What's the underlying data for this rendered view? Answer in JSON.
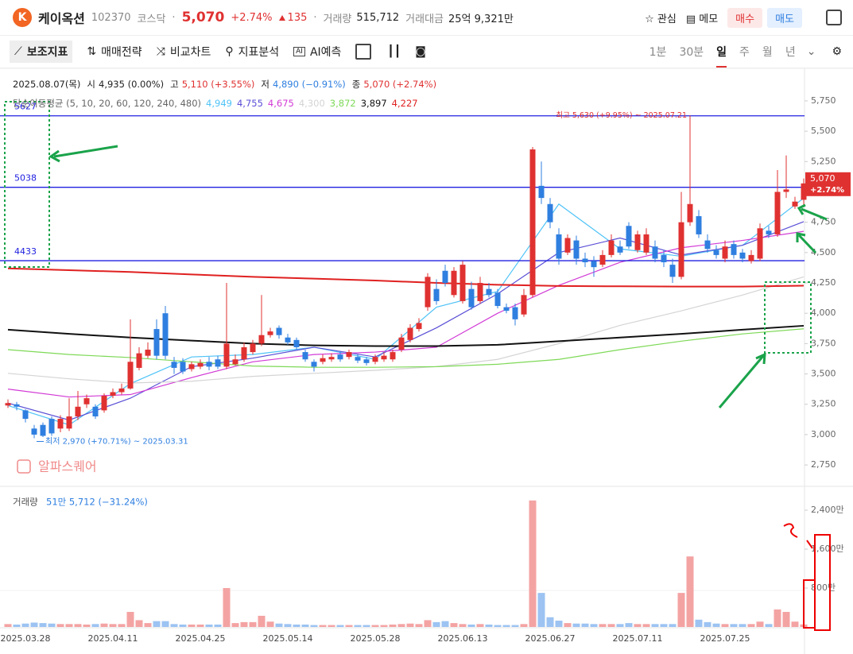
{
  "header": {
    "logo": "K",
    "name": "케이옥션",
    "code": "102370",
    "market": "코스닥",
    "price": "5,070",
    "change_pct": "+2.74%",
    "change": "135",
    "volume_label": "거래량",
    "volume": "515,712",
    "amount_label": "거래대금",
    "amount": "25억 9,321만",
    "buttons": [
      "관심",
      "메모",
      "매수",
      "매도"
    ]
  },
  "toolbar": {
    "items": [
      "보조지표",
      "매매전략",
      "비교차트",
      "지표분석",
      "AI예측"
    ],
    "periods": [
      "1분",
      "30분",
      "일",
      "주",
      "월",
      "년"
    ],
    "active_period": 2
  },
  "info": {
    "date": "2025.08.07(목)",
    "ohlc": [
      {
        "label": "시",
        "value": "4,935 (0.00%)"
      },
      {
        "label": "고",
        "value": "5,110 (+3.55%)"
      },
      {
        "label": "저",
        "value": "4,890 (−0.91%)"
      },
      {
        "label": "종",
        "value": "5,070 (+2.74%)"
      }
    ],
    "ma_title": "단순이동평균 (5, 10, 20, 60, 120, 240, 480)"
  },
  "chart_data": [
    {
      "type": "candlestick",
      "categories": [
        null,
        null,
        "2025.03.28",
        null,
        null,
        null,
        null,
        null,
        null,
        null,
        null,
        null,
        "2025.04.11",
        null,
        null,
        null,
        null,
        null,
        null,
        null,
        null,
        null,
        "2025.04.25",
        null,
        null,
        null,
        null,
        null,
        null,
        null,
        null,
        null,
        "2025.05.14",
        null,
        null,
        null,
        null,
        null,
        null,
        null,
        null,
        null,
        "2025.05.28",
        null,
        null,
        null,
        null,
        null,
        null,
        null,
        null,
        null,
        "2025.06.13",
        null,
        null,
        null,
        null,
        null,
        null,
        null,
        null,
        null,
        "2025.06.27",
        null,
        null,
        null,
        null,
        null,
        null,
        null,
        null,
        null,
        "2025.07.11",
        null,
        null,
        null,
        null,
        null,
        null,
        null,
        null,
        null,
        "2025.07.25",
        null,
        null,
        null,
        null,
        null,
        null,
        null,
        null,
        null
      ],
      "open": [
        3240,
        3250,
        3200,
        3050,
        3080,
        3130,
        3050,
        3050,
        3150,
        3250,
        3230,
        3200,
        3320,
        3350,
        3380,
        3550,
        3650,
        3870,
        4000,
        3600,
        3600,
        3540,
        3560,
        3600,
        3620,
        3560,
        3580,
        3620,
        3680,
        3750,
        3820,
        3880,
        3800,
        3780,
        3680,
        3600,
        3600,
        3620,
        3660,
        3640,
        3640,
        3620,
        3600,
        3620,
        3620,
        3700,
        3780,
        3870,
        4050,
        4200,
        4350,
        4150,
        4100,
        4200,
        4100,
        4200,
        4170,
        4050,
        4050,
        3990,
        4150,
        5050,
        4900,
        4650,
        4500,
        4600,
        4450,
        4430,
        4400,
        4480,
        4550,
        4720,
        4520,
        4500,
        4550,
        4480,
        4400,
        4300,
        4750,
        4800,
        4600,
        4520,
        4450,
        4570,
        4500,
        4430,
        4450,
        4680,
        4650,
        5000,
        4880,
        4935
      ],
      "high": [
        3290,
        3270,
        3210,
        3080,
        3100,
        3150,
        3160,
        3300,
        3360,
        3330,
        3250,
        3340,
        3380,
        3420,
        3950,
        3720,
        3760,
        3950,
        4060,
        3640,
        3630,
        3600,
        3620,
        3640,
        3650,
        4250,
        3660,
        3760,
        3780,
        4150,
        3880,
        3900,
        3830,
        3800,
        3700,
        3620,
        3660,
        3670,
        3690,
        3700,
        3660,
        3640,
        3660,
        3680,
        3700,
        3830,
        3910,
        3960,
        4330,
        4280,
        4400,
        4380,
        4430,
        4260,
        4300,
        4250,
        4200,
        4080,
        4080,
        4200,
        5370,
        5250,
        4950,
        4700,
        4650,
        4640,
        4500,
        4470,
        4520,
        4650,
        4600,
        4750,
        4680,
        4700,
        4600,
        4520,
        4450,
        5000,
        5630,
        4850,
        4650,
        4560,
        4600,
        4600,
        4530,
        4520,
        4740,
        4720,
        5180,
        5300,
        4960,
        5110
      ],
      "low": [
        3220,
        3200,
        3100,
        2970,
        2980,
        2990,
        3020,
        3030,
        3120,
        3220,
        3130,
        3180,
        3300,
        3330,
        3370,
        3530,
        3630,
        3620,
        3620,
        3500,
        3500,
        3520,
        3540,
        3530,
        3540,
        3540,
        3570,
        3600,
        3660,
        3730,
        3800,
        3790,
        3740,
        3700,
        3600,
        3520,
        3580,
        3600,
        3600,
        3620,
        3590,
        3570,
        3580,
        3600,
        3600,
        3680,
        3760,
        3850,
        4020,
        4070,
        4220,
        4130,
        4080,
        4030,
        4080,
        4130,
        4040,
        4000,
        3900,
        3970,
        4130,
        4900,
        4700,
        4400,
        4480,
        4400,
        4380,
        4300,
        4380,
        4460,
        4480,
        4530,
        4500,
        4480,
        4420,
        4380,
        4250,
        4280,
        4720,
        4620,
        4500,
        4450,
        4420,
        4450,
        4420,
        4410,
        4430,
        4620,
        4630,
        4950,
        4860,
        4890
      ],
      "close": [
        3260,
        3230,
        3130,
        3000,
        2990,
        3010,
        3130,
        3150,
        3230,
        3300,
        3150,
        3320,
        3350,
        3380,
        3600,
        3670,
        3700,
        3650,
        3650,
        3550,
        3520,
        3580,
        3590,
        3560,
        3560,
        3750,
        3620,
        3720,
        3750,
        3820,
        3850,
        3820,
        3760,
        3720,
        3620,
        3560,
        3630,
        3640,
        3620,
        3680,
        3610,
        3590,
        3640,
        3650,
        3680,
        3800,
        3880,
        3920,
        4300,
        4100,
        4250,
        4350,
        4400,
        4050,
        4250,
        4150,
        4060,
        4020,
        3950,
        4150,
        5350,
        4950,
        4750,
        4450,
        4620,
        4450,
        4420,
        4380,
        4480,
        4600,
        4500,
        4550,
        4650,
        4650,
        4450,
        4420,
        4300,
        4750,
        4900,
        4650,
        4530,
        4480,
        4550,
        4480,
        4450,
        4480,
        4700,
        4650,
        5000,
        5020,
        4920,
        5070
      ],
      "up_color": "#e03131",
      "down_color": "#2f7fe0",
      "series": [
        {
          "name": "4,949",
          "color": "#4fc3f7",
          "x": [
            0,
            7,
            14,
            21,
            28,
            35,
            42,
            49,
            56,
            63,
            70,
            77,
            84,
            91
          ],
          "values": [
            3240,
            3080,
            3420,
            3640,
            3660,
            3720,
            3620,
            4050,
            4180,
            4900,
            4530,
            4470,
            4560,
            4949
          ]
        },
        {
          "name": "4,755",
          "color": "#5a4fd6",
          "x": [
            0,
            7,
            14,
            21,
            28,
            35,
            42,
            49,
            56,
            63,
            70,
            77,
            84,
            91
          ],
          "values": [
            3260,
            3120,
            3300,
            3560,
            3630,
            3720,
            3640,
            3880,
            4160,
            4500,
            4620,
            4480,
            4560,
            4755
          ]
        },
        {
          "name": "4,675",
          "color": "#d23ad6",
          "x": [
            0,
            7,
            14,
            21,
            28,
            35,
            42,
            49,
            56,
            63,
            70,
            77,
            84,
            91
          ],
          "values": [
            3375,
            3310,
            3330,
            3470,
            3600,
            3660,
            3680,
            3720,
            4000,
            4230,
            4420,
            4540,
            4600,
            4675
          ]
        },
        {
          "name": "4,300",
          "color": "#d4d4d4",
          "x": [
            0,
            7,
            14,
            21,
            28,
            35,
            42,
            49,
            56,
            63,
            70,
            77,
            84,
            91
          ],
          "values": [
            3505,
            3460,
            3425,
            3440,
            3480,
            3505,
            3530,
            3560,
            3620,
            3750,
            3900,
            4020,
            4150,
            4300
          ]
        },
        {
          "name": "3,872",
          "color": "#7ed957",
          "x": [
            0,
            7,
            14,
            21,
            28,
            35,
            42,
            49,
            56,
            63,
            70,
            77,
            84,
            91
          ],
          "values": [
            3700,
            3660,
            3635,
            3600,
            3565,
            3555,
            3555,
            3560,
            3580,
            3620,
            3700,
            3770,
            3830,
            3872
          ]
        },
        {
          "name": "3,897",
          "color": "#111111",
          "x": [
            0,
            7,
            14,
            21,
            28,
            35,
            42,
            49,
            56,
            63,
            70,
            77,
            84,
            91
          ],
          "values": [
            3865,
            3830,
            3800,
            3775,
            3750,
            3735,
            3730,
            3730,
            3740,
            3770,
            3800,
            3830,
            3865,
            3897
          ]
        },
        {
          "name": "4,227",
          "color": "#e02020",
          "x": [
            0,
            7,
            14,
            21,
            28,
            35,
            42,
            49,
            56,
            63,
            70,
            77,
            84,
            91
          ],
          "values": [
            4370,
            4355,
            4340,
            4320,
            4300,
            4285,
            4270,
            4250,
            4235,
            4225,
            4222,
            4220,
            4220,
            4227
          ]
        }
      ],
      "hlines": [
        5627,
        5038,
        4433
      ],
      "hline_color": "#2020e0",
      "high_note": {
        "text": "최고 5,630 (+9.95%) ~ 2025.07.21",
        "value": 5630
      },
      "low_note": {
        "text": "최저 2,970 (+70.71%) ~ 2025.03.31",
        "value": 2970
      },
      "last": {
        "value": 5070,
        "label": "5,070",
        "change": "+2.74%"
      },
      "watermark": "알파스퀘어",
      "ylim": [
        2587,
        6005
      ],
      "yticks": [
        {
          "value": 2750,
          "label": "2,750"
        },
        {
          "value": 3000,
          "label": "3,000"
        },
        {
          "value": 3250,
          "label": "3,250"
        },
        {
          "value": 3500,
          "label": "3,500"
        },
        {
          "value": 3750,
          "label": "3,750"
        },
        {
          "value": 4000,
          "label": "4,000"
        },
        {
          "value": 4250,
          "label": "4,250"
        },
        {
          "value": 4500,
          "label": "4,500"
        },
        {
          "value": 4750,
          "label": "4,750"
        },
        {
          "value": 5000,
          "label": "5,000"
        },
        {
          "value": 5250,
          "label": "5,250"
        },
        {
          "value": 5500,
          "label": "5,500"
        },
        {
          "value": 5750,
          "label": "5,750"
        }
      ]
    },
    {
      "type": "bar",
      "title": "거래량",
      "subtitle": "51만 5,712 (−31.24%)",
      "values": [
        60,
        50,
        70,
        90,
        80,
        70,
        60,
        60,
        60,
        50,
        60,
        70,
        60,
        60,
        310,
        140,
        80,
        120,
        120,
        60,
        50,
        50,
        50,
        50,
        50,
        800,
        80,
        100,
        100,
        230,
        110,
        70,
        60,
        50,
        50,
        40,
        40,
        40,
        40,
        40,
        40,
        40,
        40,
        40,
        50,
        60,
        70,
        60,
        140,
        100,
        120,
        80,
        60,
        50,
        60,
        50,
        40,
        40,
        40,
        60,
        2600,
        700,
        200,
        130,
        80,
        70,
        70,
        60,
        60,
        60,
        60,
        80,
        60,
        60,
        60,
        60,
        60,
        700,
        1450,
        150,
        100,
        70,
        60,
        60,
        60,
        60,
        110,
        60,
        360,
        310,
        110,
        52
      ],
      "up_color": "#f4a3a3",
      "down_color": "#9cc3f2",
      "ylim": [
        0,
        2760
      ],
      "yticks": [
        {
          "value": 800,
          "label": "800만"
        },
        {
          "value": 1600,
          "label": "1,600만"
        },
        {
          "value": 2400,
          "label": "2,400만"
        }
      ]
    }
  ]
}
